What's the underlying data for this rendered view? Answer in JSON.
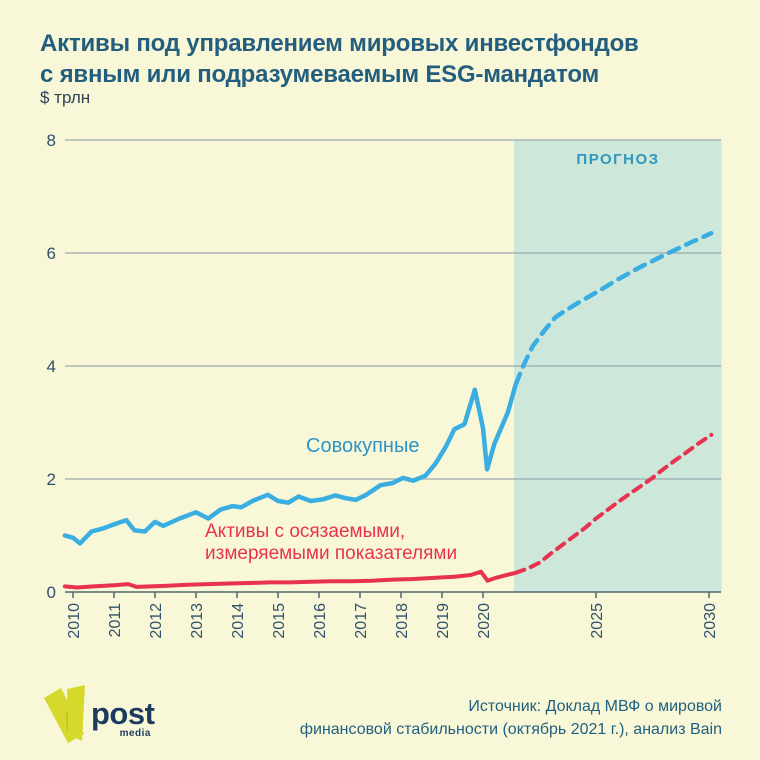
{
  "header": {
    "title_line1": "Активы под управлением мировых инвестфондов",
    "title_line2": "с явным или подразумеваемым ESG-мандатом",
    "subtitle": "$ трлн"
  },
  "annotations": {
    "forecast_label": "ПРОГНОЗ",
    "series1_label": "Совокупные",
    "series2_label_line1": "Активы с осязаемыми,",
    "series2_label_line2": "измеряемыми показателями"
  },
  "colors": {
    "background": "#f8f8d9",
    "title": "#235e7e",
    "axis": "#53656f",
    "axis_text": "#31506a",
    "gridline": "#9aa7ae",
    "forecast_fill": "#cde7db",
    "forecast_label": "#2f97ba",
    "series_total": "#3aaee1",
    "series_measurable": "#e8334e",
    "logo_green": "#d6d92c",
    "logo_navy": "#1c3b5e"
  },
  "chart_data": {
    "type": "line",
    "title": "Активы под управлением мировых инвестфондов с явным или подразумеваемым ESG-мандатом",
    "ylabel": "$ трлн",
    "xlabel": "",
    "ylim": [
      0,
      8
    ],
    "y_ticks": [
      0,
      2,
      4,
      6,
      8
    ],
    "x_ticks_history": [
      2010,
      2011,
      2012,
      2013,
      2014,
      2015,
      2016,
      2017,
      2018,
      2019,
      2020
    ],
    "x_ticks_forecast": [
      2025,
      2030
    ],
    "grid": "horizontal",
    "forecast_region": {
      "label": "ПРОГНОЗ",
      "start_year": 2021.37,
      "end_year": 2030.55
    },
    "series": [
      {
        "name": "Активы с осязаемыми, измеряемыми показателями",
        "color": "#e8334e",
        "stroke_width": 4,
        "dash": "9 7",
        "history": [
          [
            2009.8,
            0.1
          ],
          [
            2010.1,
            0.08
          ],
          [
            2010.5,
            0.1
          ],
          [
            2011.0,
            0.12
          ],
          [
            2011.35,
            0.14
          ],
          [
            2011.55,
            0.09
          ],
          [
            2011.9,
            0.1
          ],
          [
            2012.3,
            0.11
          ],
          [
            2012.8,
            0.13
          ],
          [
            2013.3,
            0.14
          ],
          [
            2013.8,
            0.15
          ],
          [
            2014.3,
            0.16
          ],
          [
            2014.8,
            0.17
          ],
          [
            2015.3,
            0.17
          ],
          [
            2015.8,
            0.18
          ],
          [
            2016.3,
            0.19
          ],
          [
            2016.8,
            0.19
          ],
          [
            2017.3,
            0.2
          ],
          [
            2017.8,
            0.22
          ],
          [
            2018.3,
            0.23
          ],
          [
            2018.8,
            0.25
          ],
          [
            2019.3,
            0.27
          ],
          [
            2019.7,
            0.3
          ],
          [
            2019.95,
            0.36
          ],
          [
            2020.2,
            0.2
          ],
          [
            2020.55,
            0.25
          ],
          [
            2020.95,
            0.29
          ],
          [
            2021.45,
            0.34
          ]
        ],
        "forecast": [
          [
            2021.45,
            0.34
          ],
          [
            2022.0,
            0.42
          ],
          [
            2022.5,
            0.52
          ],
          [
            2023.0,
            0.68
          ],
          [
            2023.5,
            0.83
          ],
          [
            2024.0,
            0.98
          ],
          [
            2024.5,
            1.13
          ],
          [
            2025.0,
            1.3
          ],
          [
            2025.5,
            1.45
          ],
          [
            2026.0,
            1.6
          ],
          [
            2026.5,
            1.74
          ],
          [
            2027.0,
            1.88
          ],
          [
            2027.5,
            2.02
          ],
          [
            2028.0,
            2.18
          ],
          [
            2028.5,
            2.33
          ],
          [
            2029.0,
            2.47
          ],
          [
            2029.5,
            2.62
          ],
          [
            2030.1,
            2.78
          ]
        ]
      },
      {
        "name": "Совокупные",
        "color": "#3aaee1",
        "stroke_width": 4.5,
        "dash": "11 8",
        "history": [
          [
            2009.8,
            1.0
          ],
          [
            2010.0,
            0.96
          ],
          [
            2010.17,
            0.86
          ],
          [
            2010.45,
            1.07
          ],
          [
            2010.75,
            1.13
          ],
          [
            2011.05,
            1.21
          ],
          [
            2011.3,
            1.27
          ],
          [
            2011.5,
            1.09
          ],
          [
            2011.75,
            1.07
          ],
          [
            2012.0,
            1.24
          ],
          [
            2012.2,
            1.17
          ],
          [
            2012.6,
            1.3
          ],
          [
            2013.0,
            1.41
          ],
          [
            2013.3,
            1.3
          ],
          [
            2013.6,
            1.46
          ],
          [
            2013.9,
            1.52
          ],
          [
            2014.1,
            1.5
          ],
          [
            2014.4,
            1.62
          ],
          [
            2014.75,
            1.72
          ],
          [
            2015.0,
            1.61
          ],
          [
            2015.25,
            1.58
          ],
          [
            2015.5,
            1.69
          ],
          [
            2015.8,
            1.61
          ],
          [
            2016.1,
            1.64
          ],
          [
            2016.4,
            1.71
          ],
          [
            2016.65,
            1.66
          ],
          [
            2016.9,
            1.63
          ],
          [
            2017.15,
            1.72
          ],
          [
            2017.5,
            1.89
          ],
          [
            2017.8,
            1.93
          ],
          [
            2018.05,
            2.02
          ],
          [
            2018.3,
            1.97
          ],
          [
            2018.6,
            2.06
          ],
          [
            2018.85,
            2.28
          ],
          [
            2019.1,
            2.58
          ],
          [
            2019.3,
            2.88
          ],
          [
            2019.55,
            2.97
          ],
          [
            2019.8,
            3.58
          ],
          [
            2020.0,
            2.9
          ],
          [
            2020.18,
            2.17
          ],
          [
            2020.5,
            2.62
          ],
          [
            2020.8,
            2.9
          ],
          [
            2021.1,
            3.18
          ],
          [
            2021.45,
            3.68
          ]
        ],
        "forecast": [
          [
            2021.45,
            3.68
          ],
          [
            2021.8,
            4.02
          ],
          [
            2022.2,
            4.35
          ],
          [
            2022.7,
            4.62
          ],
          [
            2023.2,
            4.86
          ],
          [
            2023.6,
            4.97
          ],
          [
            2024.3,
            5.14
          ],
          [
            2025.0,
            5.3
          ],
          [
            2026.0,
            5.54
          ],
          [
            2027.0,
            5.76
          ],
          [
            2028.0,
            5.96
          ],
          [
            2029.0,
            6.15
          ],
          [
            2030.1,
            6.35
          ]
        ]
      }
    ]
  },
  "footer": {
    "logo_text": "post",
    "logo_subtext": "media",
    "source_line1": "Источник: Доклад МВФ о мировой",
    "source_line2": "финансовой стабильности (октябрь 2021 г.), анализ Bain"
  }
}
